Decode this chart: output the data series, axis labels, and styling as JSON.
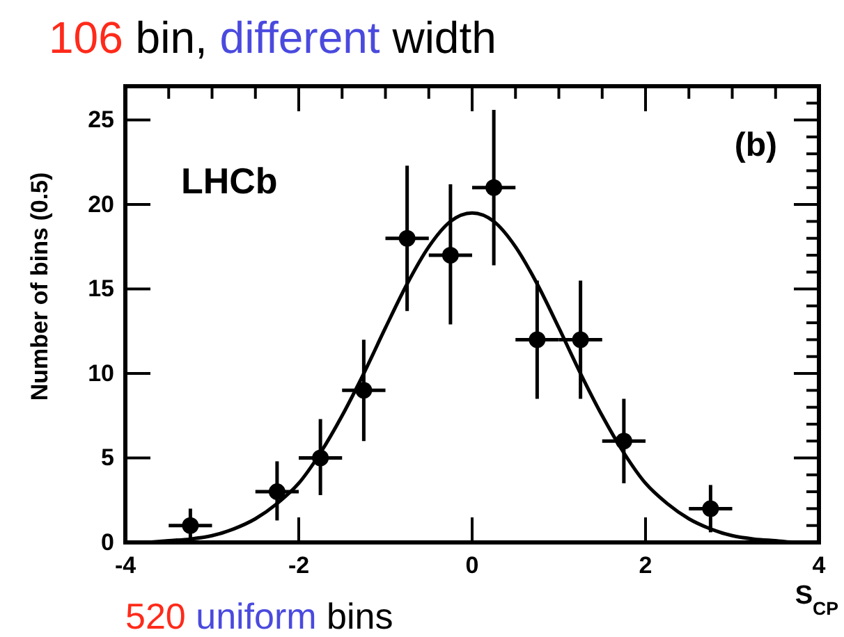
{
  "chart_data": {
    "type": "scatter",
    "title": "106 bin, different width",
    "xlabel": "S$_{CP}$",
    "ylabel": "Number of bins (0.5)",
    "annotations": [
      "LHCb",
      "(b)",
      "520 uniform bins"
    ],
    "xlim": [
      -4,
      4
    ],
    "ylim": [
      0,
      27
    ],
    "xticks": [
      -4,
      -2,
      0,
      2,
      4
    ],
    "yticks": [
      0,
      5,
      10,
      15,
      20,
      25
    ],
    "grid": false,
    "series": [
      {
        "color": "#000000",
        "marker": "circle",
        "x": [
          -3.25,
          -2.25,
          -1.75,
          -1.25,
          -0.75,
          -0.25,
          0.25,
          0.75,
          1.25,
          1.75,
          2.75
        ],
        "values": [
          1,
          3,
          5,
          9,
          18,
          17,
          21,
          12,
          12,
          6,
          2
        ],
        "xerrors": [
          0.25,
          0.25,
          0.25,
          0.25,
          0.25,
          0.25,
          0.25,
          0.25,
          0.25,
          0.25,
          0.25
        ],
        "errors": [
          [
            0.2,
            2.0
          ],
          [
            1.3,
            4.8
          ],
          [
            2.8,
            7.3
          ],
          [
            6.0,
            12.0
          ],
          [
            13.7,
            22.3
          ],
          [
            12.9,
            21.2
          ],
          [
            16.4,
            25.6
          ],
          [
            8.5,
            15.5
          ],
          [
            8.5,
            15.5
          ],
          [
            3.5,
            8.5
          ],
          [
            0.6,
            3.4
          ]
        ]
      },
      {
        "type": "line",
        "color": "#000000",
        "marker": "none",
        "line_style": "solid",
        "x": [
          -3.75,
          -3.5,
          -3.25,
          -3,
          -2.75,
          -2.5,
          -2.25,
          -2,
          -1.75,
          -1.5,
          -1.25,
          -1,
          -0.75,
          -0.5,
          -0.25,
          0,
          0.25,
          0.5,
          0.75,
          1,
          1.25,
          1.5,
          1.75,
          2,
          2.25,
          2.5,
          2.75,
          3,
          3.25,
          3.5,
          3.75,
          4
        ],
        "values": [
          0.0,
          0.1,
          0.2,
          0.4,
          0.8,
          1.4,
          2.3,
          3.5,
          5.3,
          7.5,
          10.0,
          12.7,
          15.3,
          17.5,
          19.0,
          19.5,
          19.0,
          17.5,
          15.3,
          12.7,
          10.0,
          7.5,
          5.3,
          3.5,
          2.3,
          1.4,
          0.8,
          0.4,
          0.2,
          0.1,
          0.0,
          0.0
        ]
      }
    ]
  }
}
